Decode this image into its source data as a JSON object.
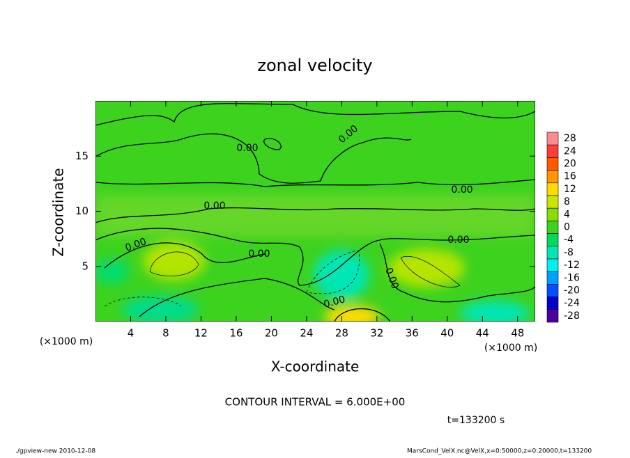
{
  "chart_data": {
    "type": "contour",
    "title": "zonal velocity",
    "x_label": "X-coordinate",
    "y_label": "Z-coordinate",
    "x_unit": "(×1000 m)",
    "y_unit": "(×1000 m)",
    "xlim": [
      0,
      50
    ],
    "xticks": [
      4,
      8,
      12,
      16,
      20,
      24,
      28,
      32,
      36,
      40,
      44,
      48
    ],
    "ylim": [
      0,
      20
    ],
    "yticks": [
      5,
      10,
      15
    ],
    "contour_labels": [
      "0.00",
      "0.00",
      "0.00",
      "0.00",
      "0.00",
      "0.00",
      "0.00",
      "0.00",
      "0.00"
    ],
    "colorbar": {
      "ticks": [
        28,
        24,
        20,
        16,
        12,
        8,
        4,
        0,
        -4,
        -8,
        -12,
        -16,
        -20,
        -24,
        -28
      ],
      "colors": [
        "#ff8c8c",
        "#ff3c3c",
        "#ff5a00",
        "#ff9600",
        "#ffdc00",
        "#c8e600",
        "#8cdc00",
        "#3cd21e",
        "#00dc5a",
        "#00e6b4",
        "#00f0f0",
        "#00a0ff",
        "#0050ff",
        "#0000c8",
        "#50009a"
      ]
    },
    "contour_interval": "CONTOUR INTERVAL = 6.000E+00",
    "time_label": "t=133200 s",
    "footer_left": "./gpview-new  2010-12-08",
    "footer_right": "MarsCond_VelX.nc@VelX,x=0:50000,z=0:20000,t=133200"
  }
}
